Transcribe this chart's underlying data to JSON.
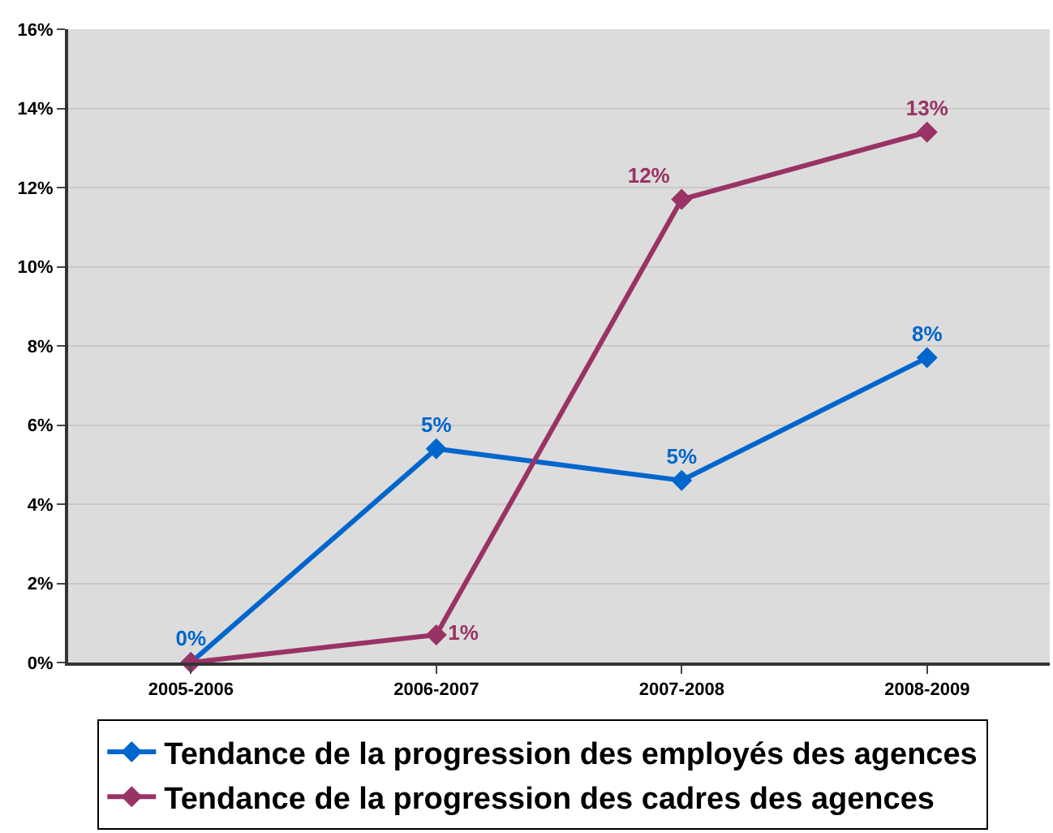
{
  "chart_data": {
    "type": "line",
    "categories": [
      "2005-2006",
      "2006-2007",
      "2007-2008",
      "2008-2009"
    ],
    "series": [
      {
        "name": "Tendance de la progression des employés des agences",
        "color": "#0066cc",
        "values": [
          0,
          5.4,
          4.6,
          7.7
        ],
        "value_labels": [
          "0%",
          "5%",
          "5%",
          "8%"
        ]
      },
      {
        "name": "Tendance de la progression des cadres des agences",
        "color": "#993366",
        "values": [
          0,
          0.7,
          11.7,
          13.4
        ],
        "value_labels": [
          null,
          "1%",
          "12%",
          "13%"
        ]
      }
    ],
    "ylim": [
      0,
      16
    ],
    "yticks": [
      {
        "value": 0,
        "label": "0%"
      },
      {
        "value": 2,
        "label": "2%"
      },
      {
        "value": 4,
        "label": "4%"
      },
      {
        "value": 6,
        "label": "6%"
      },
      {
        "value": 8,
        "label": "8%"
      },
      {
        "value": 10,
        "label": "10%"
      },
      {
        "value": 12,
        "label": "12%"
      },
      {
        "value": 14,
        "label": "14%"
      },
      {
        "value": 16,
        "label": "16%"
      }
    ],
    "grid": "y",
    "legend": "bottom",
    "marker": "diamond",
    "line_style": "solid"
  }
}
